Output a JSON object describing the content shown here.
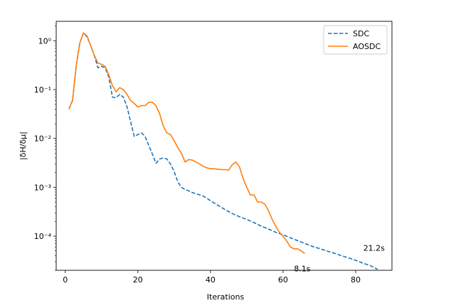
{
  "chart_data": {
    "type": "line",
    "xlabel": "Iterations",
    "ylabel": "|δH/δμ|",
    "yscale": "log",
    "xlim": [
      -2.5,
      90
    ],
    "ylim": [
      2e-05,
      2.5
    ],
    "xticks": [
      0,
      20,
      40,
      60,
      80
    ],
    "xtick_labels": [
      "0",
      "20",
      "40",
      "60",
      "80"
    ],
    "yticks": [
      0.0001,
      0.001,
      0.01,
      0.1,
      1
    ],
    "ytick_labels": [
      "10⁻⁴",
      "10⁻³",
      "10⁻²",
      "10⁻¹",
      "10⁰"
    ],
    "legend_position": "top-right",
    "grid": false,
    "series": [
      {
        "name": "SDC",
        "color": "#1f77b4",
        "style": "dashed",
        "x": [
          1,
          2,
          3,
          4,
          5,
          6,
          7,
          8,
          9,
          10,
          11,
          12,
          13,
          14,
          15,
          16,
          17,
          18,
          19,
          20,
          21,
          22,
          23,
          24,
          25,
          26,
          27,
          28,
          29,
          30,
          31,
          32,
          33,
          34,
          35,
          36,
          37,
          38,
          39,
          40,
          42,
          44,
          46,
          48,
          50,
          52,
          54,
          56,
          58,
          60,
          62,
          64,
          66,
          68,
          70,
          72,
          74,
          76,
          78,
          80,
          82,
          84,
          86
        ],
        "y": [
          0.04,
          0.06,
          0.3,
          0.9,
          1.45,
          1.2,
          0.8,
          0.5,
          0.28,
          0.3,
          0.28,
          0.18,
          0.07,
          0.068,
          0.08,
          0.07,
          0.045,
          0.022,
          0.011,
          0.012,
          0.013,
          0.011,
          0.0072,
          0.0048,
          0.0031,
          0.0038,
          0.004,
          0.0038,
          0.003,
          0.0021,
          0.0013,
          0.001,
          0.0009,
          0.00085,
          0.00078,
          0.00074,
          0.0007,
          0.00066,
          0.0006,
          0.00053,
          0.00043,
          0.00035,
          0.00029,
          0.00025,
          0.00022,
          0.00019,
          0.00016,
          0.00014,
          0.00012,
          0.000107,
          9.3e-05,
          8.1e-05,
          7.1e-05,
          6.2e-05,
          5.6e-05,
          5e-05,
          4.5e-05,
          4e-05,
          3.6e-05,
          3.2e-05,
          2.8e-05,
          2.5e-05,
          2.1e-05
        ]
      },
      {
        "name": "AOSDC",
        "color": "#ff7f0e",
        "style": "solid",
        "x": [
          1,
          2,
          3,
          4,
          5,
          6,
          7,
          8,
          9,
          10,
          11,
          12,
          13,
          14,
          15,
          16,
          17,
          18,
          19,
          20,
          21,
          22,
          23,
          24,
          25,
          26,
          27,
          28,
          29,
          30,
          31,
          32,
          33,
          34,
          35,
          36,
          37,
          38,
          39,
          40,
          41,
          42,
          43,
          44,
          45,
          46,
          47,
          48,
          49,
          50,
          51,
          52,
          53,
          54,
          55,
          56,
          57,
          58,
          59,
          60,
          61,
          62,
          63,
          64,
          65,
          66
        ],
        "y": [
          0.04,
          0.06,
          0.3,
          0.9,
          1.45,
          1.25,
          0.8,
          0.5,
          0.35,
          0.33,
          0.3,
          0.2,
          0.12,
          0.09,
          0.11,
          0.1,
          0.08,
          0.06,
          0.052,
          0.044,
          0.047,
          0.047,
          0.055,
          0.055,
          0.047,
          0.032,
          0.018,
          0.013,
          0.012,
          0.009,
          0.0065,
          0.005,
          0.0033,
          0.0037,
          0.0036,
          0.0033,
          0.003,
          0.0027,
          0.0025,
          0.0024,
          0.0024,
          0.00235,
          0.0023,
          0.0023,
          0.00225,
          0.0029,
          0.0033,
          0.0026,
          0.0015,
          0.001,
          0.0007,
          0.0007,
          0.0005,
          0.0005,
          0.00045,
          0.00033,
          0.00022,
          0.00016,
          0.00012,
          0.0001,
          8e-05,
          6e-05,
          5.5e-05,
          5.5e-05,
          5e-05,
          4.4e-05
        ]
      }
    ],
    "annotations": [
      {
        "text": "21.2s",
        "x": 82.1,
        "y": 5e-05
      },
      {
        "text": "8.1s",
        "x": 63.0,
        "y": 1.91e-05
      }
    ]
  }
}
